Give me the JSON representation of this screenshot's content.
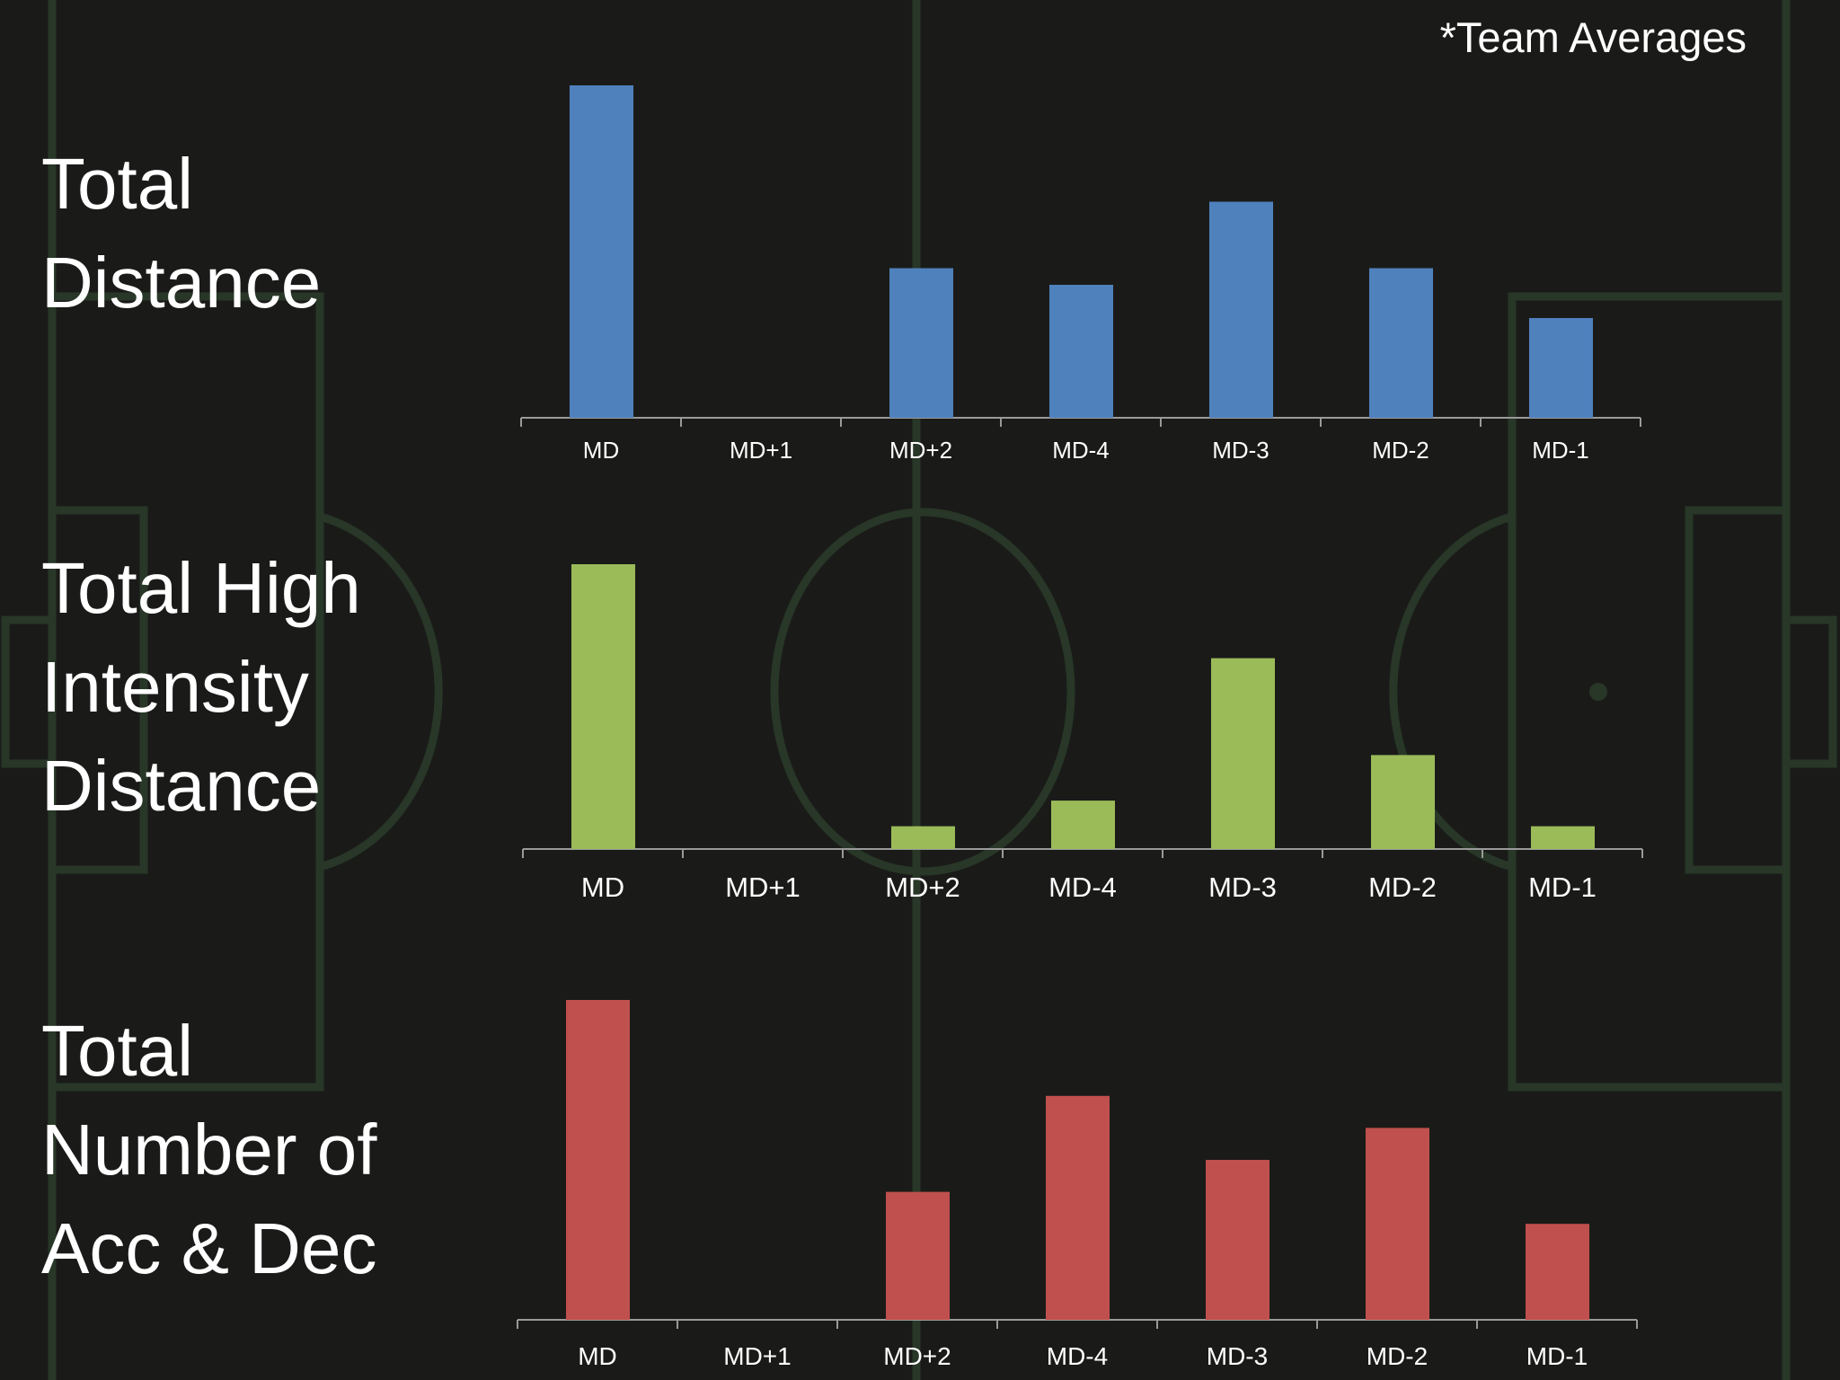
{
  "note": "*Team Averages",
  "colors": {
    "background": "#1a1b19",
    "pitch_lines": "#2b3a2a",
    "axis": "#9a9a9a",
    "series_colors": [
      "#4f81bd",
      "#9bbb59",
      "#c0504d"
    ]
  },
  "titles": {
    "distance": "Total\nDistance",
    "hid": "Total High\nIntensity\nDistance",
    "accdec": "Total\nNumber of\nAcc & Dec"
  },
  "chart_data": [
    {
      "type": "bar",
      "title": "Total\nDistance",
      "categories": [
        "MD",
        "MD+1",
        "MD+2",
        "MD-4",
        "MD-3",
        "MD-2",
        "MD-1"
      ],
      "values": [
        100,
        0,
        45,
        40,
        65,
        45,
        30
      ],
      "ylim": [
        0,
        100
      ],
      "grid": false,
      "color": "#4f81bd"
    },
    {
      "type": "bar",
      "title": "Total High\nIntensity\nDistance",
      "categories": [
        "MD",
        "MD+1",
        "MD+2",
        "MD-4",
        "MD-3",
        "MD-2",
        "MD-1"
      ],
      "values": [
        100,
        0,
        8,
        17,
        67,
        33,
        8
      ],
      "ylim": [
        0,
        100
      ],
      "grid": false,
      "color": "#9bbb59"
    },
    {
      "type": "bar",
      "title": "Total\nNumber of\nAcc & Dec",
      "categories": [
        "MD",
        "MD+1",
        "MD+2",
        "MD-4",
        "MD-3",
        "MD-2",
        "MD-1"
      ],
      "values": [
        100,
        0,
        40,
        70,
        50,
        60,
        30
      ],
      "ylim": [
        0,
        100
      ],
      "grid": false,
      "color": "#c0504d"
    }
  ]
}
